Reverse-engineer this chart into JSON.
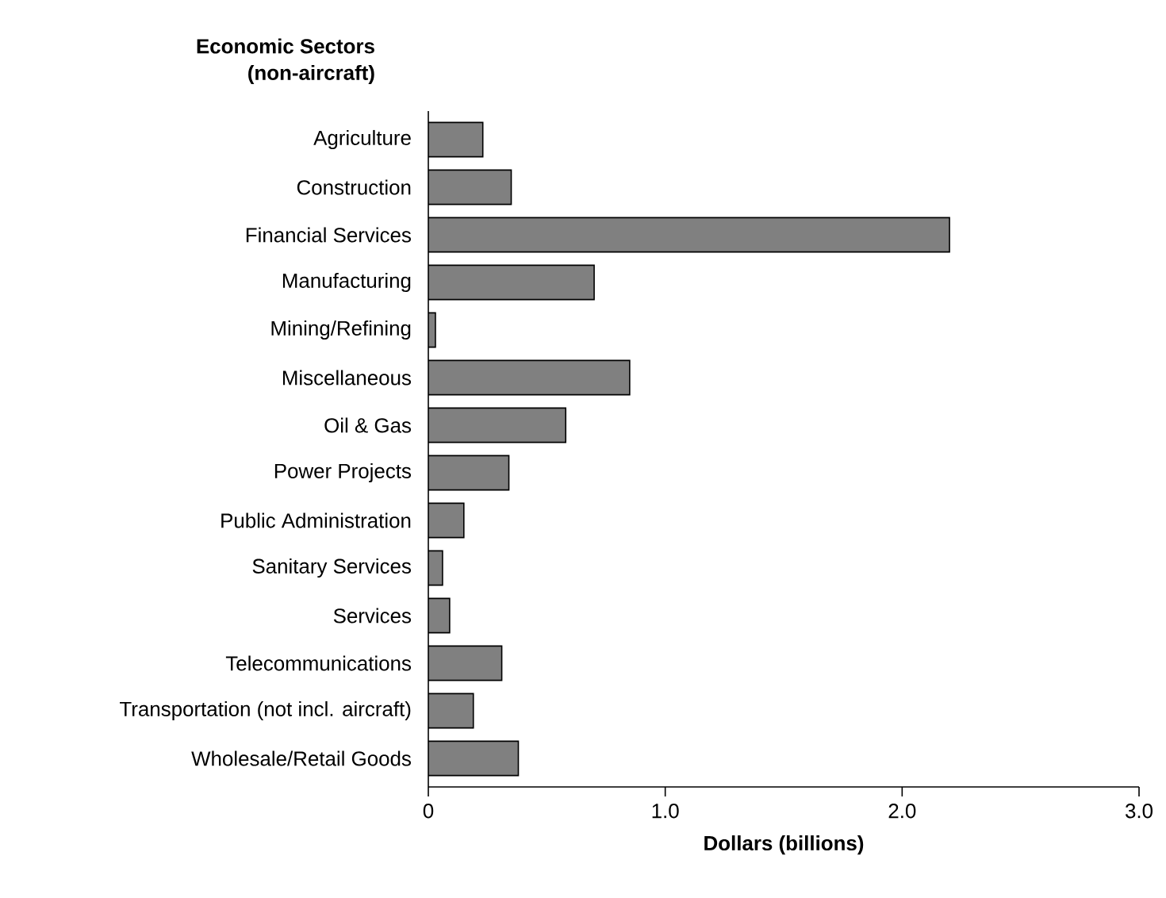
{
  "chart_data": {
    "type": "bar",
    "orientation": "horizontal",
    "title": "Economic Sectors",
    "subtitle": "(non-aircraft)",
    "xlabel": "Dollars (billions)",
    "categories": [
      "Agriculture",
      "Construction",
      "Financial Services",
      "Manufacturing",
      "Mining/Refining",
      "Miscellaneous",
      "Oil & Gas",
      "Power Projects",
      "Public Administration",
      "Sanitary Services",
      "Services",
      "Telecommunications",
      "Transportation (not incl. aircraft)",
      "Wholesale/Retail Goods"
    ],
    "values": [
      0.23,
      0.35,
      2.2,
      0.7,
      0.03,
      0.85,
      0.58,
      0.34,
      0.15,
      0.06,
      0.09,
      0.31,
      0.19,
      0.38
    ],
    "color": "#808080",
    "xlim": [
      0,
      3
    ],
    "xticks": [
      0,
      {
        "value": 1,
        "label": "1.0"
      },
      {
        "value": 2,
        "label": "2.0"
      },
      {
        "value": 3,
        "label": "3.0"
      }
    ],
    "grid": false
  }
}
